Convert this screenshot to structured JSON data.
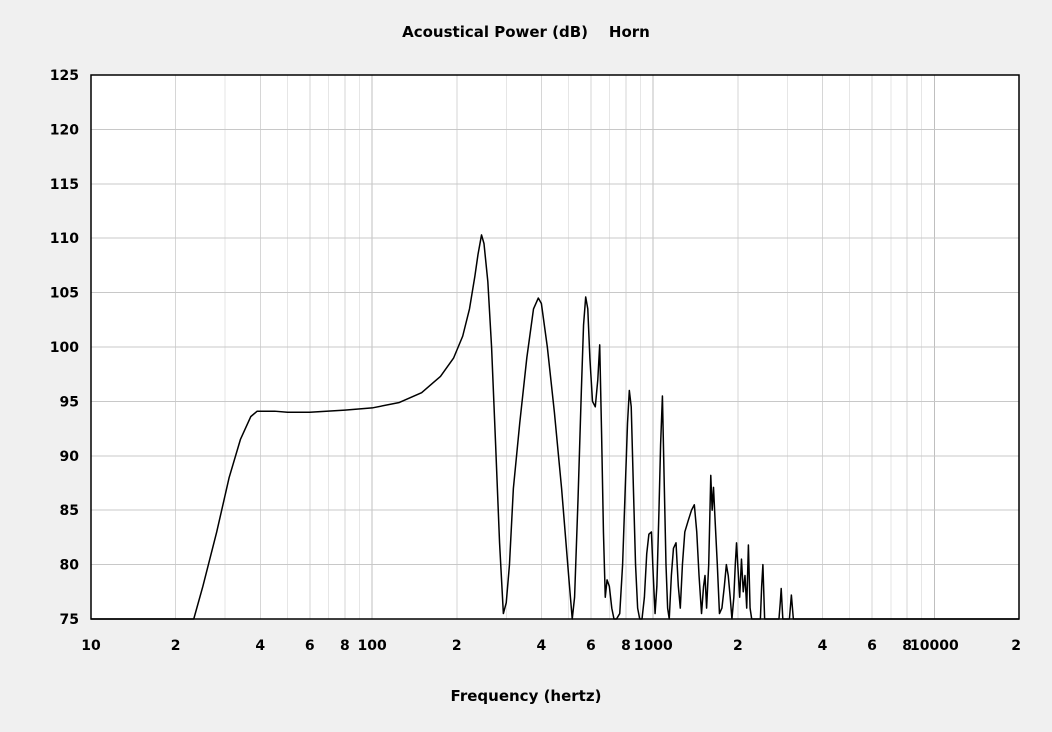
{
  "chart_data": {
    "type": "line",
    "title": "Acoustical Power (dB)    Horn",
    "xlabel": "Frequency (hertz)",
    "ylabel": "",
    "x_scale": "log",
    "xlim": [
      10,
      20000
    ],
    "ylim": [
      75,
      125
    ],
    "grid": true,
    "x_major_ticks": [
      {
        "value": 10,
        "label": "10"
      },
      {
        "value": 100,
        "label": "100"
      },
      {
        "value": 1000,
        "label": "1000"
      },
      {
        "value": 10000,
        "label": "10000"
      }
    ],
    "x_minor_ticks": [
      {
        "value": 20,
        "label": "2"
      },
      {
        "value": 40,
        "label": "4"
      },
      {
        "value": 60,
        "label": "6"
      },
      {
        "value": 80,
        "label": "8"
      },
      {
        "value": 200,
        "label": "2"
      },
      {
        "value": 400,
        "label": "4"
      },
      {
        "value": 600,
        "label": "6"
      },
      {
        "value": 800,
        "label": "8"
      },
      {
        "value": 2000,
        "label": "2"
      },
      {
        "value": 4000,
        "label": "4"
      },
      {
        "value": 6000,
        "label": "6"
      },
      {
        "value": 8000,
        "label": "8"
      },
      {
        "value": 20000,
        "label": "2"
      }
    ],
    "y_ticks": [
      {
        "value": 125,
        "label": "125"
      },
      {
        "value": 120,
        "label": "120"
      },
      {
        "value": 115,
        "label": "115"
      },
      {
        "value": 110,
        "label": "110"
      },
      {
        "value": 105,
        "label": "105"
      },
      {
        "value": 100,
        "label": "100"
      },
      {
        "value": 95,
        "label": "95"
      },
      {
        "value": 90,
        "label": "90"
      },
      {
        "value": 85,
        "label": "85"
      },
      {
        "value": 80,
        "label": "80"
      },
      {
        "value": 75,
        "label": "75"
      }
    ],
    "series": [
      {
        "line_color": "#000000",
        "points": [
          [
            10,
            75
          ],
          [
            23.2,
            75
          ],
          [
            25,
            78
          ],
          [
            28,
            83
          ],
          [
            31,
            88
          ],
          [
            34,
            91.5
          ],
          [
            37,
            93.6
          ],
          [
            39,
            94.1
          ],
          [
            45,
            94.1
          ],
          [
            50,
            94.0
          ],
          [
            60,
            94.0
          ],
          [
            80,
            94.2
          ],
          [
            100,
            94.4
          ],
          [
            125,
            94.9
          ],
          [
            150,
            95.8
          ],
          [
            175,
            97.3
          ],
          [
            195,
            99
          ],
          [
            210,
            101
          ],
          [
            222,
            103.5
          ],
          [
            232,
            106.5
          ],
          [
            238,
            108.5
          ],
          [
            245,
            110.3
          ],
          [
            250,
            109.5
          ],
          [
            258,
            106
          ],
          [
            266,
            100
          ],
          [
            275,
            91
          ],
          [
            284,
            82
          ],
          [
            293,
            75.5
          ],
          [
            300,
            76.5
          ],
          [
            308,
            80
          ],
          [
            318,
            87
          ],
          [
            335,
            93
          ],
          [
            355,
            99
          ],
          [
            375,
            103.5
          ],
          [
            390,
            104.5
          ],
          [
            400,
            104
          ],
          [
            420,
            100
          ],
          [
            445,
            94
          ],
          [
            472,
            87
          ],
          [
            500,
            79
          ],
          [
            515,
            75
          ],
          [
            525,
            77
          ],
          [
            540,
            86
          ],
          [
            555,
            96
          ],
          [
            565,
            102
          ],
          [
            575,
            104.6
          ],
          [
            585,
            103.5
          ],
          [
            595,
            99
          ],
          [
            608,
            95
          ],
          [
            622,
            94.5
          ],
          [
            635,
            97
          ],
          [
            645,
            100.2
          ],
          [
            655,
            92
          ],
          [
            665,
            83
          ],
          [
            675,
            77
          ],
          [
            685,
            78.6
          ],
          [
            698,
            78
          ],
          [
            712,
            76
          ],
          [
            725,
            75
          ],
          [
            740,
            75
          ],
          [
            760,
            75.5
          ],
          [
            778,
            80
          ],
          [
            795,
            87
          ],
          [
            810,
            93
          ],
          [
            822,
            96
          ],
          [
            835,
            94.5
          ],
          [
            850,
            87
          ],
          [
            865,
            80
          ],
          [
            880,
            76
          ],
          [
            895,
            75
          ],
          [
            912,
            75
          ],
          [
            930,
            77
          ],
          [
            948,
            81
          ],
          [
            965,
            82.8
          ],
          [
            985,
            83
          ],
          [
            1000,
            79
          ],
          [
            1015,
            75.5
          ],
          [
            1030,
            78
          ],
          [
            1048,
            85
          ],
          [
            1062,
            91
          ],
          [
            1078,
            95.5
          ],
          [
            1093,
            88
          ],
          [
            1110,
            80
          ],
          [
            1125,
            76
          ],
          [
            1140,
            75
          ],
          [
            1160,
            79
          ],
          [
            1180,
            81.5
          ],
          [
            1205,
            82
          ],
          [
            1228,
            78
          ],
          [
            1248,
            76
          ],
          [
            1270,
            80
          ],
          [
            1295,
            83
          ],
          [
            1330,
            84
          ],
          [
            1368,
            85
          ],
          [
            1400,
            85.5
          ],
          [
            1428,
            83
          ],
          [
            1455,
            79
          ],
          [
            1485,
            75.5
          ],
          [
            1510,
            78
          ],
          [
            1528,
            79
          ],
          [
            1548,
            76
          ],
          [
            1575,
            80
          ],
          [
            1602,
            88.2
          ],
          [
            1620,
            85
          ],
          [
            1638,
            87.1
          ],
          [
            1660,
            84
          ],
          [
            1690,
            80
          ],
          [
            1720,
            75.5
          ],
          [
            1755,
            76
          ],
          [
            1790,
            78
          ],
          [
            1820,
            80
          ],
          [
            1848,
            79
          ],
          [
            1878,
            77
          ],
          [
            1905,
            75
          ],
          [
            1935,
            77
          ],
          [
            1958,
            80
          ],
          [
            1978,
            82
          ],
          [
            1998,
            80
          ],
          [
            2030,
            77
          ],
          [
            2060,
            80.5
          ],
          [
            2090,
            77.5
          ],
          [
            2120,
            79
          ],
          [
            2150,
            76
          ],
          [
            2180,
            81.8
          ],
          [
            2210,
            76
          ],
          [
            2240,
            75
          ],
          [
            2300,
            75
          ],
          [
            2405,
            75
          ],
          [
            2430,
            78
          ],
          [
            2455,
            80
          ],
          [
            2490,
            75
          ],
          [
            2800,
            75
          ],
          [
            2830,
            76.5
          ],
          [
            2852,
            77.8
          ],
          [
            2890,
            75
          ],
          [
            3050,
            75
          ],
          [
            3100,
            77.2
          ],
          [
            3150,
            75
          ],
          [
            20000,
            75
          ]
        ]
      }
    ]
  }
}
